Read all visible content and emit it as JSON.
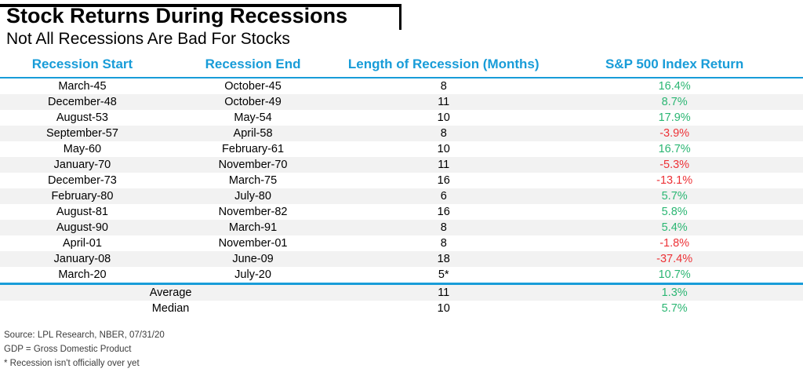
{
  "title": "Stock Returns During Recessions",
  "subtitle": "Not All Recessions Are Bad For Stocks",
  "colors": {
    "accent_blue": "#189CD8",
    "positive_green": "#2BB673",
    "negative_red": "#ED3237",
    "row_stripe": "#F2F2F2"
  },
  "chart_data": {
    "type": "table",
    "title": "Stock Returns During Recessions",
    "subtitle": "Not All Recessions Are Bad For Stocks",
    "columns": [
      "Recession Start",
      "Recession End",
      "Length of Recession (Months)",
      "S&P 500 Index Return"
    ],
    "rows": [
      {
        "recession_start": "March-45",
        "recession_end": "October-45",
        "length_months": "8",
        "sp500_return": "16.4%"
      },
      {
        "recession_start": "December-48",
        "recession_end": "October-49",
        "length_months": "11",
        "sp500_return": "8.7%"
      },
      {
        "recession_start": "August-53",
        "recession_end": "May-54",
        "length_months": "10",
        "sp500_return": "17.9%"
      },
      {
        "recession_start": "September-57",
        "recession_end": "April-58",
        "length_months": "8",
        "sp500_return": "-3.9%"
      },
      {
        "recession_start": "May-60",
        "recession_end": "February-61",
        "length_months": "10",
        "sp500_return": "16.7%"
      },
      {
        "recession_start": "January-70",
        "recession_end": "November-70",
        "length_months": "11",
        "sp500_return": "-5.3%"
      },
      {
        "recession_start": "December-73",
        "recession_end": "March-75",
        "length_months": "16",
        "sp500_return": "-13.1%"
      },
      {
        "recession_start": "February-80",
        "recession_end": "July-80",
        "length_months": "6",
        "sp500_return": "5.7%"
      },
      {
        "recession_start": "August-81",
        "recession_end": "November-82",
        "length_months": "16",
        "sp500_return": "5.8%"
      },
      {
        "recession_start": "August-90",
        "recession_end": "March-91",
        "length_months": "8",
        "sp500_return": "5.4%"
      },
      {
        "recession_start": "April-01",
        "recession_end": "November-01",
        "length_months": "8",
        "sp500_return": "-1.8%"
      },
      {
        "recession_start": "January-08",
        "recession_end": "June-09",
        "length_months": "18",
        "sp500_return": "-37.4%"
      },
      {
        "recession_start": "March-20",
        "recession_end": "July-20",
        "length_months": "5*",
        "sp500_return": "10.7%"
      }
    ],
    "summary_rows": [
      {
        "label": "Average",
        "length_months": "11",
        "sp500_return": "1.3%"
      },
      {
        "label": "Median",
        "length_months": "10",
        "sp500_return": "5.7%"
      }
    ]
  },
  "footnotes": [
    "Source: LPL Research, NBER, 07/31/20",
    "GDP = Gross Domestic Product",
    "* Recession isn't officially over yet"
  ]
}
